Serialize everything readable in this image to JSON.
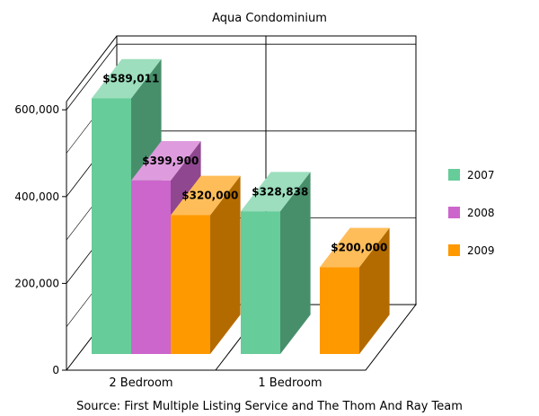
{
  "chart_data": {
    "type": "bar",
    "title": "Aqua Condominium",
    "categories": [
      "2 Bedroom",
      "1 Bedroom"
    ],
    "series": [
      {
        "name": "2007",
        "color": "#66cc99",
        "values": [
          589011,
          328838
        ]
      },
      {
        "name": "2008",
        "color": "#cc66cc",
        "values": [
          399900,
          null
        ]
      },
      {
        "name": "2009",
        "color": "#ff9900",
        "values": [
          320000,
          200000
        ]
      }
    ],
    "data_labels": [
      [
        "$589,011",
        "$328,838"
      ],
      [
        "$399,900",
        null
      ],
      [
        "$320,000",
        "$200,000"
      ]
    ],
    "yticks": [
      0,
      200000,
      400000,
      600000
    ],
    "ytick_labels": [
      "0",
      "200,000",
      "400,000",
      "600,000"
    ],
    "ylim": [
      0,
      600000
    ],
    "xlabel": "",
    "ylabel": "",
    "legend_position": "right",
    "grid": true,
    "three_d": true
  },
  "footer": {
    "source": "Source: First Multiple Listing Service and The Thom And Ray Team"
  }
}
